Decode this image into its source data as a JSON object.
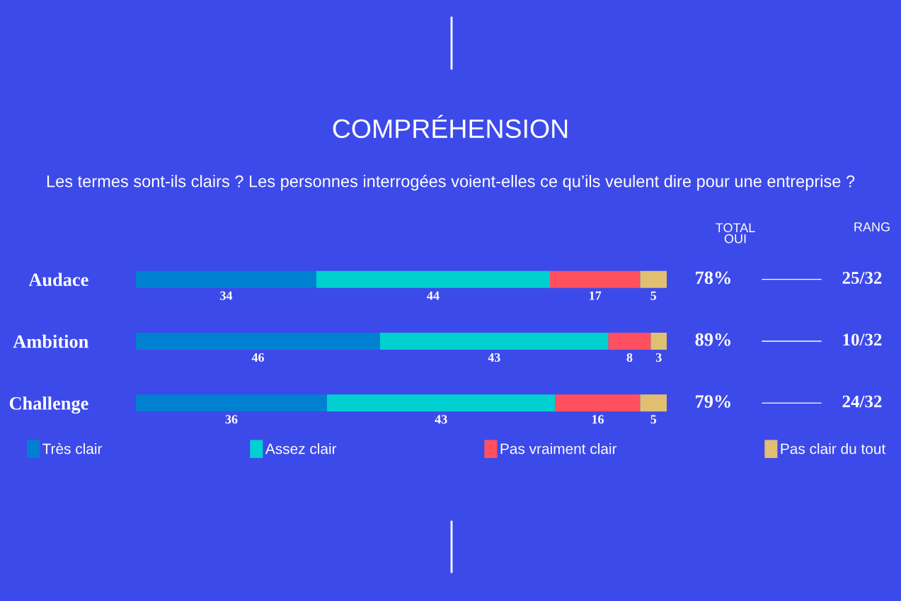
{
  "chart_data": {
    "type": "bar",
    "orientation": "horizontal",
    "stacked": true,
    "title": "COMPRÉHENSION",
    "subtitle": "Les termes sont-ils clairs ? Les personnes interrogées voient-elles ce qu’ils veulent dire pour une entreprise ?",
    "categories": [
      "Audace",
      "Ambition",
      "Challenge"
    ],
    "series": [
      {
        "name": "Très clair",
        "color": "#0080d0",
        "values": [
          34,
          46,
          36
        ]
      },
      {
        "name": "Assez clair",
        "color": "#00d0d0",
        "values": [
          44,
          43,
          43
        ]
      },
      {
        "name": "Pas vraiment clair",
        "color": "#ff5060",
        "values": [
          17,
          8,
          16
        ]
      },
      {
        "name": "Pas clair du tout",
        "color": "#e0c070",
        "values": [
          5,
          3,
          5
        ]
      }
    ],
    "xlim": [
      0,
      100
    ],
    "data_labels": true,
    "tick_labels": "y",
    "grid": false,
    "legend": "bottom",
    "annotations": [
      "TOTAL\nOUI",
      "RANG",
      "78%",
      "25/32",
      "89%",
      "10/32",
      "79%",
      "24/32"
    ]
  }
}
